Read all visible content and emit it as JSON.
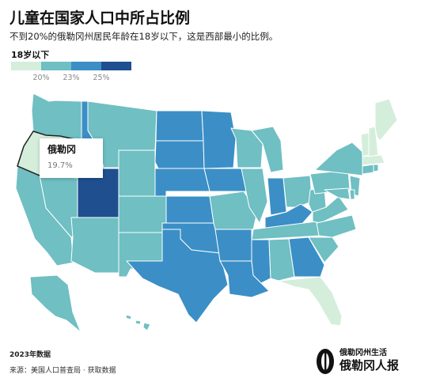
{
  "header": {
    "title": "儿童在国家人口中所占比例",
    "subtitle": "不到20%的俄勒冈州居民年龄在18岁以下，这是西部最小的比例。"
  },
  "legend": {
    "title": "18岁以下",
    "ticks": [
      "20%",
      "23%",
      "25%"
    ],
    "colors": [
      "#d5eedc",
      "#6fbfc3",
      "#3b8fc6",
      "#1f4f8f"
    ]
  },
  "tooltip": {
    "state": "俄勒冈",
    "value": "19.7%"
  },
  "footer": {
    "note": "2023年数据",
    "source": "来源：美国人口普查局 · 获取数据"
  },
  "brand": {
    "top_line": "俄勒冈州生活",
    "name": "俄勒冈人报"
  },
  "map": {
    "colors": {
      "lightest": "#d5eedc",
      "light": "#6fbfc3",
      "mid": "#3b8fc6",
      "dark": "#1f4f8f",
      "border": "#ffffff",
      "highlight_border": "#222222"
    },
    "highlighted_state": "Oregon"
  }
}
